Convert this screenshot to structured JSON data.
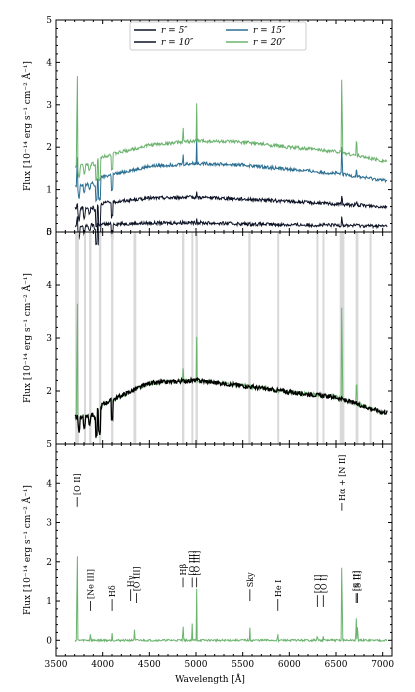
{
  "chart_data": [
    {
      "panel": "top",
      "type": "line",
      "xlabel": "",
      "ylabel": "Flux [10⁻¹⁴ erg s⁻¹ cm⁻² Å⁻¹]",
      "xlim": [
        3500,
        7100
      ],
      "ylim": [
        0,
        5
      ],
      "yticks": [
        "0",
        "1",
        "2",
        "3",
        "4",
        "5"
      ],
      "legend": {
        "placement": "top-center",
        "entries": [
          "r = 5″",
          "r = 15″",
          "r = 10″",
          "r = 20″"
        ]
      },
      "series": [
        {
          "name": "r = 5″",
          "color": "#0d1326",
          "base": [
            [
              3700,
              0.13
            ],
            [
              3950,
              0.18
            ],
            [
              4500,
              0.21
            ],
            [
              5000,
              0.22
            ],
            [
              5500,
              0.19
            ],
            [
              6000,
              0.17
            ],
            [
              6500,
              0.16
            ],
            [
              7000,
              0.14
            ]
          ],
          "lines": [
            [
              3727,
              0.45
            ],
            [
              4861,
              0.28
            ],
            [
              5007,
              0.33
            ],
            [
              6563,
              0.5
            ],
            [
              6720,
              0.24
            ]
          ]
        },
        {
          "name": "r = 10″",
          "color": "#0d1326",
          "base": [
            [
              3700,
              0.55
            ],
            [
              3900,
              0.58
            ],
            [
              4000,
              0.68
            ],
            [
              4500,
              0.8
            ],
            [
              5000,
              0.82
            ],
            [
              5500,
              0.78
            ],
            [
              6000,
              0.72
            ],
            [
              6500,
              0.66
            ],
            [
              7000,
              0.6
            ]
          ],
          "lines": [
            [
              3727,
              0.78
            ],
            [
              4861,
              0.88
            ],
            [
              5007,
              0.95
            ],
            [
              6563,
              0.95
            ],
            [
              6720,
              0.74
            ]
          ]
        },
        {
          "name": "r = 15″",
          "color": "#2a6f92",
          "base": [
            [
              3700,
              1.1
            ],
            [
              3900,
              1.15
            ],
            [
              4000,
              1.3
            ],
            [
              4500,
              1.55
            ],
            [
              5000,
              1.62
            ],
            [
              5500,
              1.58
            ],
            [
              6000,
              1.48
            ],
            [
              6500,
              1.38
            ],
            [
              7000,
              1.22
            ]
          ],
          "lines": [
            [
              3727,
              2.1
            ],
            [
              4861,
              1.9
            ],
            [
              5007,
              2.2
            ],
            [
              6563,
              2.3
            ],
            [
              6720,
              1.6
            ]
          ]
        },
        {
          "name": "r = 20″",
          "color": "#6bb36e",
          "base": [
            [
              3700,
              1.55
            ],
            [
              3900,
              1.62
            ],
            [
              4000,
              1.78
            ],
            [
              4500,
              2.05
            ],
            [
              5000,
              2.15
            ],
            [
              5500,
              2.12
            ],
            [
              6000,
              2.0
            ],
            [
              6500,
              1.9
            ],
            [
              7000,
              1.68
            ]
          ],
          "lines": [
            [
              3727,
              4.7
            ],
            [
              4861,
              2.6
            ],
            [
              5007,
              3.0
            ],
            [
              6563,
              4.4
            ],
            [
              6720,
              2.4
            ]
          ]
        }
      ]
    },
    {
      "panel": "middle",
      "type": "line",
      "xlabel": "",
      "ylabel": "Flux [10⁻¹⁴ erg s⁻¹ cm⁻² Å⁻¹]",
      "xlim": [
        3500,
        7100
      ],
      "ylim": [
        1,
        5
      ],
      "yticks": [
        "2",
        "3",
        "4",
        "5"
      ],
      "masked_regions": [
        [
          3705,
          3745
        ],
        [
          3800,
          3820
        ],
        [
          3855,
          3880
        ],
        [
          3960,
          3985
        ],
        [
          4090,
          4115
        ],
        [
          4330,
          4360
        ],
        [
          4850,
          4875
        ],
        [
          4950,
          4970
        ],
        [
          4995,
          5020
        ],
        [
          5560,
          5585
        ],
        [
          5870,
          5890
        ],
        [
          6290,
          6310
        ],
        [
          6355,
          6375
        ],
        [
          6540,
          6590
        ],
        [
          6710,
          6740
        ],
        [
          6860,
          6880
        ]
      ],
      "series": [
        {
          "name": "",
          "color": "#6bb36e",
          "base": [
            [
              3700,
              1.5
            ],
            [
              3900,
              1.55
            ],
            [
              4000,
              1.75
            ],
            [
              4500,
              2.15
            ],
            [
              5000,
              2.2
            ],
            [
              5500,
              2.1
            ],
            [
              6000,
              1.98
            ],
            [
              6500,
              1.88
            ],
            [
              7000,
              1.6
            ]
          ],
          "lines": [
            [
              3727,
              4.7
            ],
            [
              4861,
              2.6
            ],
            [
              5007,
              3.0
            ],
            [
              6563,
              4.4
            ],
            [
              6720,
              2.4
            ]
          ]
        },
        {
          "name": "",
          "color": "#000000",
          "base": [
            [
              3700,
              1.5
            ],
            [
              3900,
              1.55
            ],
            [
              4000,
              1.75
            ],
            [
              4500,
              2.15
            ],
            [
              5000,
              2.2
            ],
            [
              5500,
              2.1
            ],
            [
              6000,
              1.98
            ],
            [
              6500,
              1.88
            ],
            [
              7000,
              1.6
            ]
          ],
          "lines": []
        }
      ]
    },
    {
      "panel": "bottom",
      "type": "line",
      "xlabel": "Wavelength [Å]",
      "ylabel": "Flux [10⁻¹⁴ erg s⁻¹ cm⁻² Å⁻¹]",
      "xlim": [
        3500,
        7100
      ],
      "ylim": [
        -0.4,
        5
      ],
      "yticks": [
        "0",
        "1",
        "2",
        "3",
        "4",
        "5"
      ],
      "xticks": [
        "3500",
        "4000",
        "4500",
        "5000",
        "5500",
        "6000",
        "6500",
        "7000"
      ],
      "series": [
        {
          "name": "",
          "color": "#6bb36e",
          "base": [
            [
              3500,
              0
            ],
            [
              7100,
              0
            ]
          ],
          "lines": [
            [
              3727,
              3.2
            ],
            [
              3869,
              0.25
            ],
            [
              4101,
              0.2
            ],
            [
              4340,
              0.3
            ],
            [
              4861,
              0.55
            ],
            [
              4959,
              0.45
            ],
            [
              5007,
              1.3
            ],
            [
              5577,
              0.3
            ],
            [
              5876,
              0.2
            ],
            [
              6300,
              0.15
            ],
            [
              6364,
              0.1
            ],
            [
              6563,
              2.75
            ],
            [
              6716,
              0.65
            ],
            [
              6731,
              0.5
            ]
          ]
        }
      ],
      "annotations": [
        {
          "text": "[O II]",
          "x": 3727,
          "y": 3.6,
          "tick_from": 3.4,
          "tick_to": 3.65
        },
        {
          "text": "[Ne III]",
          "x": 3869,
          "y": 0.95,
          "tick_from": 0.75,
          "tick_to": 1.0
        },
        {
          "text": "Hδ",
          "x": 4101,
          "y": 1.05,
          "tick_from": 0.75,
          "tick_to": 1.05
        },
        {
          "text": "Hγ",
          "x": 4300,
          "y": 1.3,
          "tick_from": 1.0,
          "tick_to": 1.3
        },
        {
          "text": "[O III]",
          "x": 4363,
          "y": 1.2,
          "tick_from": 0.95,
          "tick_to": 1.2
        },
        {
          "text": "Hβ",
          "x": 4861,
          "y": 1.6,
          "tick_from": 1.35,
          "tick_to": 1.6
        },
        {
          "text": "[O III]",
          "x": 4959,
          "y": 1.6,
          "tick_from": 1.35,
          "tick_to": 1.6
        },
        {
          "text": "[O III]",
          "x": 5007,
          "y": 1.6,
          "tick_from": 1.35,
          "tick_to": 1.6
        },
        {
          "text": "Sky",
          "x": 5577,
          "y": 1.3,
          "tick_from": 1.0,
          "tick_to": 1.3
        },
        {
          "text": "He I",
          "x": 5876,
          "y": 1.05,
          "tick_from": 0.75,
          "tick_to": 1.05
        },
        {
          "text": "[O I]",
          "x": 6300,
          "y": 1.15,
          "tick_from": 0.85,
          "tick_to": 1.15
        },
        {
          "text": "[O I]",
          "x": 6364,
          "y": 1.15,
          "tick_from": 0.85,
          "tick_to": 1.15
        },
        {
          "text": "Hα + [N II]",
          "x": 6563,
          "y": 3.5,
          "tick_from": 3.3,
          "tick_to": 3.5
        },
        {
          "text": "[S II]",
          "x": 6716,
          "y": 1.2,
          "tick_from": 0.95,
          "tick_to": 1.2
        },
        {
          "text": "[S II]",
          "x": 6731,
          "y": 1.2,
          "tick_from": 0.95,
          "tick_to": 1.2
        }
      ]
    }
  ]
}
